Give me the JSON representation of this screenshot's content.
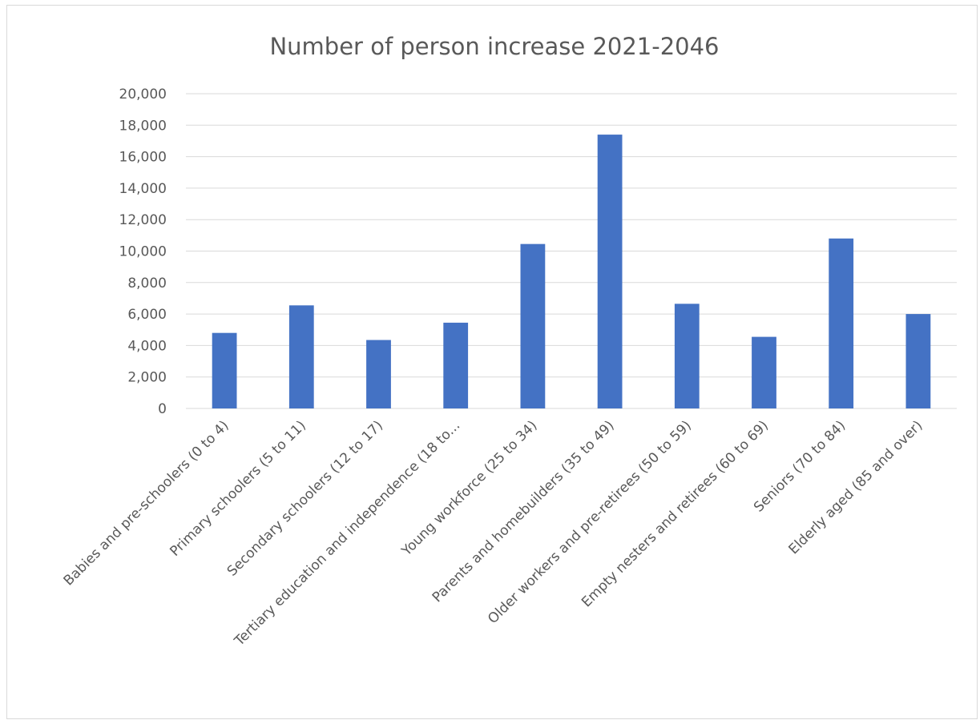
{
  "chart_data": {
    "type": "bar",
    "title": "Number of person increase 2021-2046",
    "xlabel": "",
    "ylabel": "",
    "categories": [
      "Babies and pre-schoolers (0 to 4)",
      "Primary schoolers (5 to 11)",
      "Secondary schoolers (12 to 17)",
      "Tertiary education and independence (18 to...",
      "Young workforce (25 to 34)",
      "Parents and homebuilders (35 to 49)",
      "Older workers and pre-retirees (50 to 59)",
      "Empty nesters and retirees (60 to 69)",
      "Seniors (70 to 84)",
      "Elderly aged (85 and over)"
    ],
    "values": [
      4800,
      6550,
      4350,
      5450,
      10450,
      17400,
      6650,
      4550,
      10800,
      6000
    ],
    "ylim": [
      0,
      20000
    ],
    "yticks": [
      "0",
      "2,000",
      "4,000",
      "6,000",
      "8,000",
      "10,000",
      "12,000",
      "14,000",
      "16,000",
      "18,000",
      "20,000"
    ],
    "grid": true,
    "legend": "none",
    "bar_color": "#4472c4",
    "grid_color": "#d9d9d9"
  }
}
